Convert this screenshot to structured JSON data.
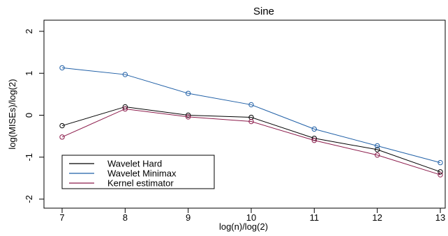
{
  "chart_data": {
    "type": "line",
    "title": "Sine",
    "xlabel": "log(n)/log(2)",
    "ylabel": "log(MISEs)/log(2)",
    "xlim": [
      7,
      13
    ],
    "ylim": [
      -2,
      2
    ],
    "x": [
      7,
      8,
      9,
      10,
      11,
      12,
      13
    ],
    "x_ticks": [
      "7",
      "8",
      "9",
      "10",
      "11",
      "12",
      "13"
    ],
    "y_ticks": [
      "-2",
      "-1",
      "0",
      "1",
      "2"
    ],
    "grid": false,
    "legend_position": "bottom-left",
    "series": [
      {
        "name": "Wavelet Hard",
        "color": "#000000",
        "values": [
          -0.25,
          0.2,
          0.0,
          -0.05,
          -0.55,
          -0.82,
          -1.35
        ]
      },
      {
        "name": "Wavelet Minimax",
        "color": "#1f5fa6",
        "values": [
          1.13,
          0.97,
          0.52,
          0.25,
          -0.33,
          -0.73,
          -1.13
        ]
      },
      {
        "name": "Kernel estimator",
        "color": "#8b1a4a",
        "values": [
          -0.52,
          0.15,
          -0.04,
          -0.15,
          -0.6,
          -0.95,
          -1.42
        ]
      }
    ]
  }
}
